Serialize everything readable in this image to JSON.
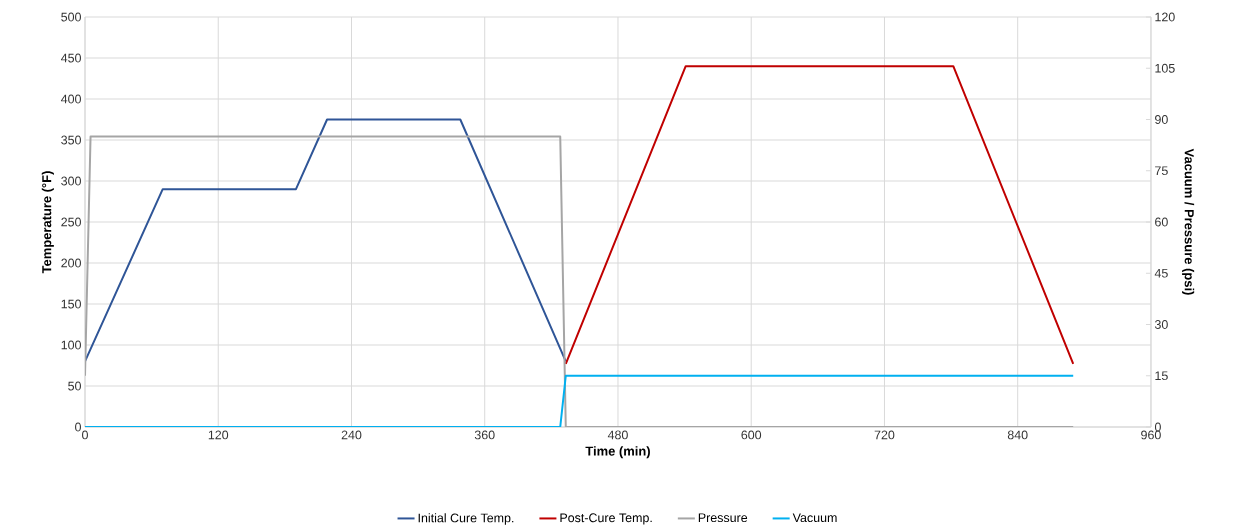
{
  "chart_data": {
    "type": "line",
    "xlabel": "Time (min)",
    "ylabel": "Temperature (°F)",
    "y2label": "Vacuum / Pressure (psi)",
    "xlim": [
      0,
      960
    ],
    "xticks": [
      0,
      120,
      240,
      360,
      480,
      600,
      720,
      840,
      960
    ],
    "ylim": [
      0,
      500
    ],
    "yticks": [
      0,
      50,
      100,
      150,
      200,
      250,
      300,
      350,
      400,
      450,
      500
    ],
    "y2lim": [
      0,
      120
    ],
    "y2ticks": [
      0,
      15,
      30,
      45,
      60,
      75,
      90,
      105,
      120
    ],
    "grid": true,
    "legend": "bottom",
    "line_style": "solid",
    "marker": "none",
    "series": [
      {
        "name": "Initial Cure Temp.",
        "color": "#2f5597",
        "x": [
          0,
          70,
          190,
          218,
          338,
          433
        ],
        "values": [
          80,
          290,
          290,
          375,
          375,
          80
        ]
      },
      {
        "name": "Post-Cure Temp.",
        "color": "#c00000",
        "x": [
          433,
          541,
          782,
          890
        ],
        "values": [
          77,
          440,
          440,
          77
        ]
      },
      {
        "name": "Pressure",
        "color": "#a5a5a5",
        "axis": "y2",
        "x": [
          0,
          5,
          428,
          433,
          890
        ],
        "values": [
          15,
          85,
          85,
          0,
          0
        ]
      },
      {
        "name": "Vacuum",
        "color": "#00b0f0",
        "axis": "y2",
        "x": [
          0,
          428,
          433,
          890
        ],
        "values": [
          0,
          0,
          15,
          15
        ]
      }
    ]
  }
}
